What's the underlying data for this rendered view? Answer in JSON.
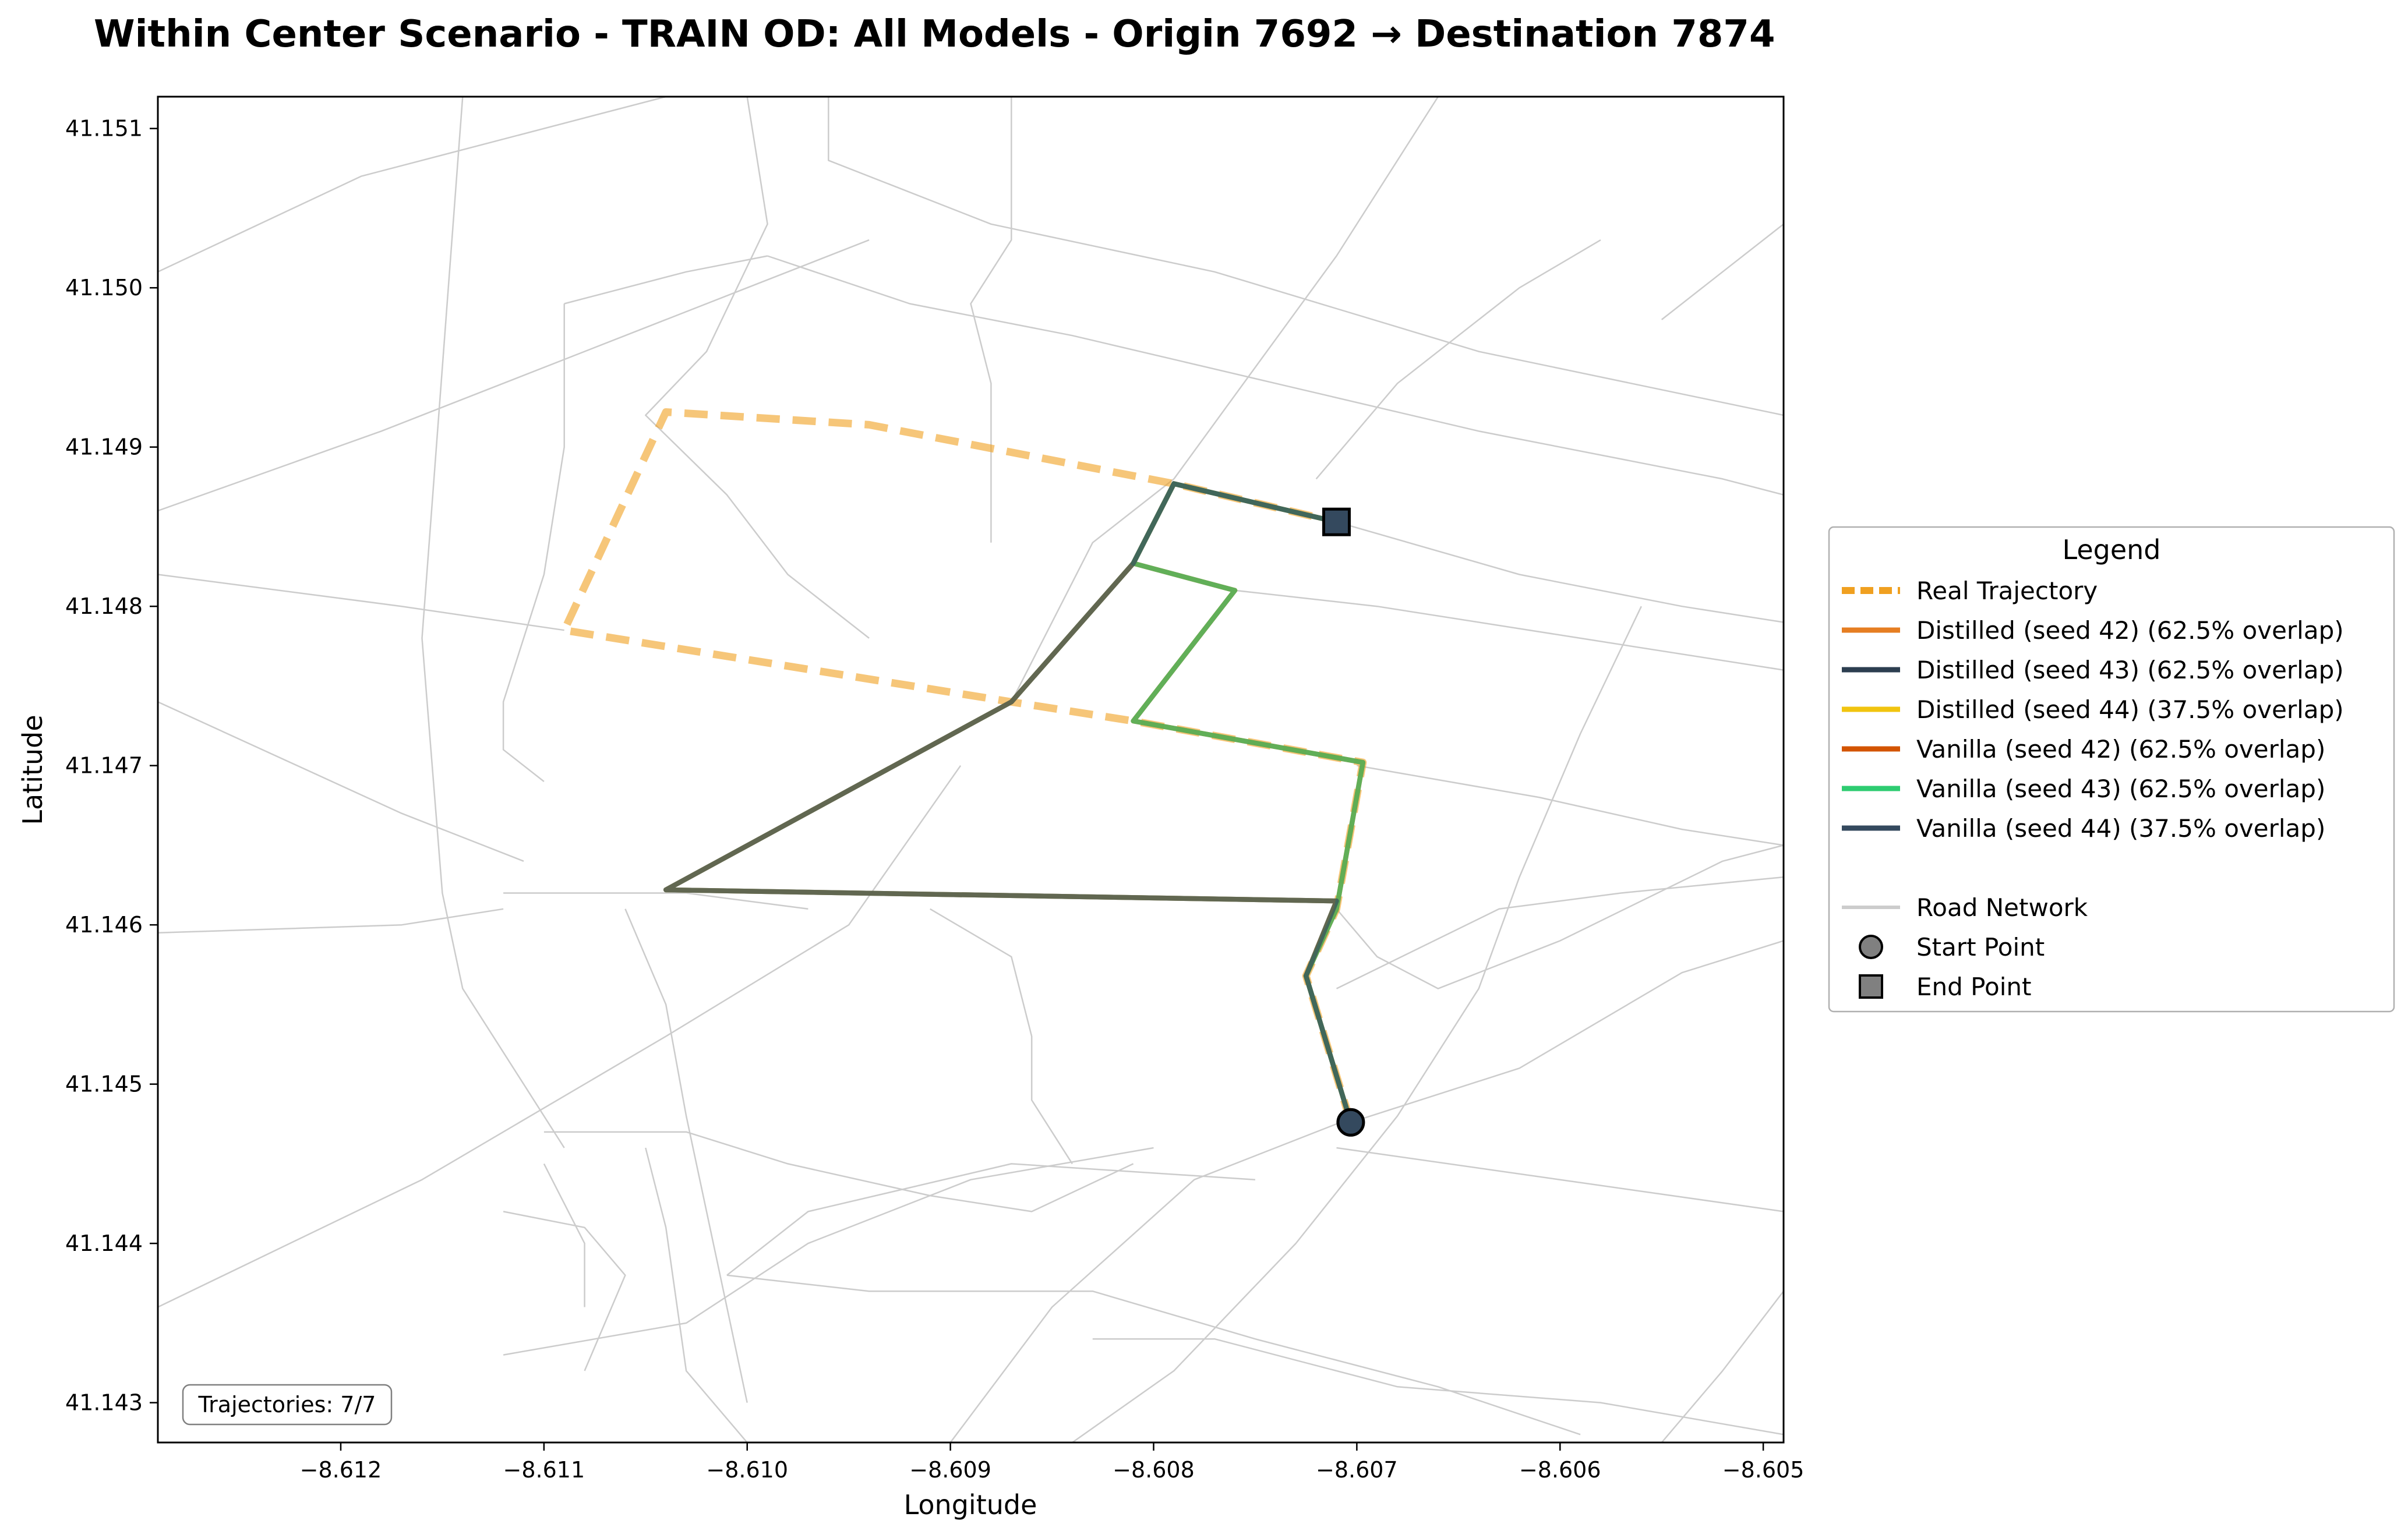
{
  "title": "Within Center Scenario - TRAIN OD: All Models - Origin 7692 → Destination 7874",
  "colors": {
    "road": "#cccccc",
    "real": "#f0a020",
    "marker_fill": "#34495e",
    "legend_marker_fill": "#808080"
  },
  "chart_data": {
    "type": "line",
    "title": "Within Center Scenario - TRAIN OD: All Models - Origin 7692 → Destination 7874",
    "xlabel": "Longitude",
    "ylabel": "Latitude",
    "xlim": [
      -8.6129,
      -8.6049
    ],
    "ylim": [
      41.14275,
      41.1512
    ],
    "xticks": [
      "−8.612",
      "−8.611",
      "−8.610",
      "−8.609",
      "−8.608",
      "−8.607",
      "−8.606",
      "−8.605"
    ],
    "xtick_values": [
      -8.612,
      -8.611,
      -8.61,
      -8.609,
      -8.608,
      -8.607,
      -8.606,
      -8.605
    ],
    "yticks": [
      "41.143",
      "41.144",
      "41.145",
      "41.146",
      "41.147",
      "41.148",
      "41.149",
      "41.150",
      "41.151"
    ],
    "ytick_values": [
      41.143,
      41.144,
      41.145,
      41.146,
      41.147,
      41.148,
      41.149,
      41.15,
      41.151
    ],
    "grid": false,
    "legend_position": "right, outside plot",
    "legend_title": "Legend",
    "annotation": "Trajectories: 7/7",
    "start_point": [
      -8.60703,
      41.14476
    ],
    "end_point": [
      -8.6071,
      41.14853
    ],
    "series": [
      {
        "name": "Real Trajectory",
        "color": "#f0a020",
        "style": "dashed",
        "points": [
          [
            -8.60703,
            41.14476
          ],
          [
            -8.60725,
            41.14568
          ],
          [
            -8.6071,
            41.1461
          ],
          [
            -8.60697,
            41.14702
          ],
          [
            -8.6081,
            41.14728
          ],
          [
            -8.6087,
            41.1474
          ],
          [
            -8.6109,
            41.14785
          ],
          [
            -8.6104,
            41.14922
          ],
          [
            -8.6094,
            41.14914
          ],
          [
            -8.6079,
            41.14877
          ],
          [
            -8.6071,
            41.14853
          ]
        ]
      },
      {
        "name": "Distilled (seed 42) (62.5% overlap)",
        "color": "#e67e22",
        "style": "solid",
        "points": [
          [
            -8.60703,
            41.14476
          ],
          [
            -8.60725,
            41.14568
          ],
          [
            -8.6071,
            41.1461
          ],
          [
            -8.60697,
            41.14702
          ],
          [
            -8.6081,
            41.14728
          ],
          [
            -8.6076,
            41.1481
          ],
          [
            -8.6081,
            41.14827
          ],
          [
            -8.6079,
            41.14877
          ],
          [
            -8.6071,
            41.14853
          ]
        ]
      },
      {
        "name": "Distilled (seed 43) (62.5% overlap)",
        "color": "#2c3e50",
        "style": "solid",
        "points": [
          [
            -8.60703,
            41.14476
          ],
          [
            -8.60725,
            41.14568
          ],
          [
            -8.6071,
            41.14615
          ],
          [
            -8.6104,
            41.14622
          ],
          [
            -8.6087,
            41.1474
          ],
          [
            -8.6081,
            41.14827
          ],
          [
            -8.6079,
            41.14877
          ],
          [
            -8.6071,
            41.14853
          ]
        ]
      },
      {
        "name": "Distilled (seed 44) (37.5% overlap)",
        "color": "#f1c40f",
        "style": "solid",
        "points": [
          [
            -8.60703,
            41.14476
          ],
          [
            -8.60725,
            41.14568
          ],
          [
            -8.6071,
            41.14615
          ],
          [
            -8.6104,
            41.14622
          ],
          [
            -8.6087,
            41.1474
          ],
          [
            -8.6081,
            41.14827
          ],
          [
            -8.6079,
            41.14877
          ],
          [
            -8.6071,
            41.14853
          ]
        ]
      },
      {
        "name": "Vanilla (seed 42) (62.5% overlap)",
        "color": "#d35400",
        "style": "solid",
        "points": [
          [
            -8.60703,
            41.14476
          ],
          [
            -8.60725,
            41.14568
          ],
          [
            -8.6071,
            41.1461
          ],
          [
            -8.60697,
            41.14702
          ],
          [
            -8.6081,
            41.14728
          ],
          [
            -8.6076,
            41.1481
          ],
          [
            -8.6081,
            41.14827
          ],
          [
            -8.6079,
            41.14877
          ],
          [
            -8.6071,
            41.14853
          ]
        ]
      },
      {
        "name": "Vanilla (seed 43) (62.5% overlap)",
        "color": "#2ecc71",
        "style": "solid",
        "points": [
          [
            -8.60703,
            41.14476
          ],
          [
            -8.60725,
            41.14568
          ],
          [
            -8.6071,
            41.1461
          ],
          [
            -8.60697,
            41.14702
          ],
          [
            -8.6081,
            41.14728
          ],
          [
            -8.6076,
            41.1481
          ],
          [
            -8.6081,
            41.14827
          ],
          [
            -8.6079,
            41.14877
          ],
          [
            -8.6071,
            41.14853
          ]
        ]
      },
      {
        "name": "Vanilla (seed 44) (37.5% overlap)",
        "color": "#34495e",
        "style": "solid",
        "points": [
          [
            -8.60703,
            41.14476
          ],
          [
            -8.60725,
            41.14568
          ],
          [
            -8.6071,
            41.14615
          ],
          [
            -8.6104,
            41.14622
          ],
          [
            -8.6087,
            41.1474
          ],
          [
            -8.6081,
            41.14827
          ],
          [
            -8.6079,
            41.14877
          ],
          [
            -8.6071,
            41.14853
          ]
        ]
      }
    ],
    "legend_extra": [
      {
        "name": "Road Network",
        "kind": "line",
        "color": "#cccccc"
      },
      {
        "name": "Start Point",
        "kind": "circle",
        "color": "#808080"
      },
      {
        "name": "End Point",
        "kind": "square",
        "color": "#808080"
      }
    ],
    "roads": [
      [
        [
          -8.6129,
          41.1501
        ],
        [
          -8.6119,
          41.1507
        ],
        [
          -8.6104,
          41.1512
        ]
      ],
      [
        [
          -8.6129,
          41.1486
        ],
        [
          -8.6118,
          41.1491
        ],
        [
          -8.6106,
          41.1497
        ],
        [
          -8.6094,
          41.1503
        ]
      ],
      [
        [
          -8.6129,
          41.1482
        ],
        [
          -8.6117,
          41.148
        ],
        [
          -8.6109,
          41.14785
        ]
      ],
      [
        [
          -8.6129,
          41.1474
        ],
        [
          -8.6117,
          41.1467
        ],
        [
          -8.6111,
          41.1464
        ]
      ],
      [
        [
          -8.6129,
          41.14595
        ],
        [
          -8.6117,
          41.146
        ],
        [
          -8.6112,
          41.1461
        ]
      ],
      [
        [
          -8.6129,
          41.1436
        ],
        [
          -8.6116,
          41.1444
        ],
        [
          -8.6104,
          41.1453
        ],
        [
          -8.6095,
          41.146
        ],
        [
          -8.60895,
          41.147
        ]
      ],
      [
        [
          -8.6114,
          41.1512
        ],
        [
          -8.6115,
          41.1495
        ],
        [
          -8.6116,
          41.1478
        ],
        [
          -8.6115,
          41.1462
        ],
        [
          -8.6114,
          41.1456
        ],
        [
          -8.6112,
          41.1452
        ],
        [
          -8.6109,
          41.1446
        ]
      ],
      [
        [
          -8.61,
          41.1512
        ],
        [
          -8.6099,
          41.1504
        ],
        [
          -8.6102,
          41.1496
        ],
        [
          -8.6105,
          41.1492
        ],
        [
          -8.6101,
          41.1487
        ],
        [
          -8.6098,
          41.1482
        ],
        [
          -8.6094,
          41.1478
        ]
      ],
      [
        [
          -8.6109,
          41.1499
        ],
        [
          -8.6109,
          41.149
        ],
        [
          -8.611,
          41.1482
        ],
        [
          -8.6112,
          41.1474
        ],
        [
          -8.6112,
          41.1471
        ],
        [
          -8.611,
          41.1469
        ]
      ],
      [
        [
          -8.6109,
          41.1499
        ],
        [
          -8.6103,
          41.1501
        ],
        [
          -8.6099,
          41.1502
        ]
      ],
      [
        [
          -8.6099,
          41.1502
        ],
        [
          -8.6092,
          41.1499
        ],
        [
          -8.6084,
          41.1497
        ],
        [
          -8.6074,
          41.1494
        ],
        [
          -8.6064,
          41.1491
        ],
        [
          -8.6052,
          41.1488
        ],
        [
          -8.6049,
          41.1487
        ]
      ],
      [
        [
          -8.6087,
          41.1512
        ],
        [
          -8.6087,
          41.1503
        ],
        [
          -8.6089,
          41.1499
        ],
        [
          -8.6088,
          41.1494
        ],
        [
          -8.6088,
          41.1484
        ]
      ],
      [
        [
          -8.6096,
          41.1512
        ],
        [
          -8.6096,
          41.1508
        ],
        [
          -8.6088,
          41.1504
        ],
        [
          -8.6077,
          41.1501
        ],
        [
          -8.6064,
          41.1496
        ],
        [
          -8.6049,
          41.1492
        ]
      ],
      [
        [
          -8.6071,
          41.14853
        ],
        [
          -8.6062,
          41.1482
        ],
        [
          -8.6054,
          41.148
        ],
        [
          -8.6049,
          41.1479
        ]
      ],
      [
        [
          -8.6112,
          41.1462
        ],
        [
          -8.6108,
          41.1462
        ],
        [
          -8.6103,
          41.1462
        ],
        [
          -8.6097,
          41.1461
        ]
      ],
      [
        [
          -8.6106,
          41.1461
        ],
        [
          -8.6104,
          41.1455
        ],
        [
          -8.6103,
          41.1448
        ],
        [
          -8.6102,
          41.1442
        ],
        [
          -8.6101,
          41.1436
        ],
        [
          -8.61,
          41.143
        ]
      ],
      [
        [
          -8.611,
          41.1447
        ],
        [
          -8.6103,
          41.1447
        ],
        [
          -8.6098,
          41.1445
        ],
        [
          -8.6091,
          41.1443
        ],
        [
          -8.6086,
          41.1442
        ],
        [
          -8.6081,
          41.1445
        ]
      ],
      [
        [
          -8.6112,
          41.1442
        ],
        [
          -8.6108,
          41.1441
        ],
        [
          -8.6106,
          41.1438
        ],
        [
          -8.6108,
          41.1432
        ]
      ],
      [
        [
          -8.6105,
          41.1446
        ],
        [
          -8.6104,
          41.1441
        ],
        [
          -8.6103,
          41.1432
        ],
        [
          -8.61,
          41.14275
        ]
      ],
      [
        [
          -8.6112,
          41.1433
        ],
        [
          -8.6103,
          41.1435
        ],
        [
          -8.6097,
          41.144
        ],
        [
          -8.6089,
          41.1444
        ],
        [
          -8.608,
          41.1446
        ]
      ],
      [
        [
          -8.6101,
          41.1438
        ],
        [
          -8.6094,
          41.1437
        ],
        [
          -8.6083,
          41.1437
        ],
        [
          -8.6075,
          41.1434
        ],
        [
          -8.6066,
          41.1431
        ],
        [
          -8.6059,
          41.1428
        ]
      ],
      [
        [
          -8.6101,
          41.1438
        ],
        [
          -8.6097,
          41.1442
        ],
        [
          -8.6087,
          41.1445
        ],
        [
          -8.6075,
          41.1444
        ]
      ],
      [
        [
          -8.609,
          41.14275
        ],
        [
          -8.6085,
          41.1436
        ],
        [
          -8.6078,
          41.1444
        ],
        [
          -8.607,
          41.1448
        ]
      ],
      [
        [
          -8.6071,
          41.1446
        ],
        [
          -8.606,
          41.1444
        ],
        [
          -8.6049,
          41.1442
        ]
      ],
      [
        [
          -8.60703,
          41.14476
        ],
        [
          -8.6062,
          41.1451
        ],
        [
          -8.6054,
          41.1457
        ],
        [
          -8.6049,
          41.1459
        ]
      ],
      [
        [
          -8.6071,
          41.1456
        ],
        [
          -8.6063,
          41.1461
        ],
        [
          -8.6057,
          41.1462
        ],
        [
          -8.6049,
          41.1463
        ]
      ],
      [
        [
          -8.607,
          41.147
        ],
        [
          -8.6061,
          41.1468
        ],
        [
          -8.6054,
          41.1466
        ],
        [
          -8.6049,
          41.1465
        ]
      ],
      [
        [
          -8.6076,
          41.1481
        ],
        [
          -8.6069,
          41.148
        ],
        [
          -8.6059,
          41.1478
        ],
        [
          -8.6049,
          41.1476
        ]
      ],
      [
        [
          -8.6083,
          41.1434
        ],
        [
          -8.6077,
          41.1434
        ],
        [
          -8.6068,
          41.1431
        ],
        [
          -8.6058,
          41.143
        ],
        [
          -8.6049,
          41.1428
        ]
      ],
      [
        [
          -8.6084,
          41.14275
        ],
        [
          -8.6079,
          41.1432
        ],
        [
          -8.6073,
          41.144
        ],
        [
          -8.6068,
          41.1448
        ],
        [
          -8.6064,
          41.1456
        ],
        [
          -8.6062,
          41.1463
        ],
        [
          -8.6059,
          41.1472
        ],
        [
          -8.6056,
          41.148
        ]
      ],
      [
        [
          -8.6079,
          41.1488
        ],
        [
          -8.6075,
          41.1495
        ],
        [
          -8.6071,
          41.1502
        ],
        [
          -8.6068,
          41.1508
        ],
        [
          -8.6066,
          41.1512
        ]
      ],
      [
        [
          -8.6079,
          41.1488
        ],
        [
          -8.6083,
          41.1484
        ],
        [
          -8.6087,
          41.1474
        ]
      ],
      [
        [
          -8.6072,
          41.1488
        ],
        [
          -8.6068,
          41.1494
        ],
        [
          -8.6062,
          41.15
        ],
        [
          -8.6058,
          41.1503
        ]
      ],
      [
        [
          -8.6055,
          41.1498
        ],
        [
          -8.6052,
          41.1501
        ],
        [
          -8.6049,
          41.1504
        ]
      ],
      [
        [
          -8.6055,
          41.14275
        ],
        [
          -8.6052,
          41.1432
        ],
        [
          -8.6049,
          41.1437
        ]
      ],
      [
        [
          -8.6071,
          41.1461
        ],
        [
          -8.6069,
          41.1458
        ],
        [
          -8.6066,
          41.1456
        ],
        [
          -8.606,
          41.1459
        ],
        [
          -8.6052,
          41.1464
        ],
        [
          -8.6049,
          41.1465
        ]
      ],
      [
        [
          -8.6084,
          41.1445
        ],
        [
          -8.6086,
          41.1449
        ],
        [
          -8.6086,
          41.1453
        ],
        [
          -8.6087,
          41.1458
        ],
        [
          -8.6091,
          41.1461
        ]
      ],
      [
        [
          -8.611,
          41.1445
        ],
        [
          -8.6108,
          41.144
        ],
        [
          -8.6108,
          41.1436
        ]
      ]
    ]
  }
}
